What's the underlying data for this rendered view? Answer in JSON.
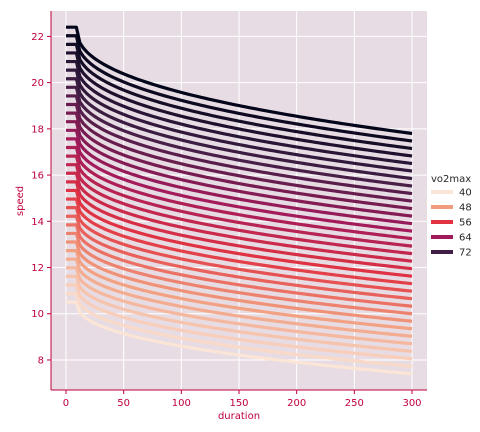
{
  "chart_data": {
    "type": "line",
    "title": "",
    "xlabel": "duration",
    "ylabel": "speed",
    "xlim": [
      -13,
      313
    ],
    "ylim": [
      6.7,
      23.1
    ],
    "x_ticks": [
      0,
      50,
      100,
      150,
      200,
      250,
      300
    ],
    "y_ticks": [
      8,
      10,
      12,
      14,
      16,
      18,
      20,
      22
    ],
    "grid": true,
    "legend": {
      "title": "vo2max",
      "placement": "right",
      "entries": [
        {
          "label": "40",
          "color": "#fbe5d6"
        },
        {
          "label": "48",
          "color": "#f19c7c"
        },
        {
          "label": "56",
          "color": "#e13342"
        },
        {
          "label": "64",
          "color": "#a11a5b"
        },
        {
          "label": "72",
          "color": "#3f1f45"
        }
      ]
    },
    "series_count": 33,
    "vo2max_range": [
      40,
      72
    ],
    "duration_range": [
      0,
      300
    ],
    "plateau_duration": 9,
    "curve_model": "speed = plateau for duration <= 9; speed = plateau - k * (duration - 9)^0.42 afterwards",
    "plateau_speed_range": [
      10.5,
      22.4
    ],
    "speed_at_300_range": [
      7.4,
      17.8
    ],
    "colors": {
      "background": "#e7dce3",
      "axis": "#c0003c",
      "grid": "#ffffff"
    },
    "colormap": [
      "#fbe5d6",
      "#f19c7c",
      "#e13342",
      "#a11a5b",
      "#3f1f45",
      "#03051a"
    ]
  }
}
